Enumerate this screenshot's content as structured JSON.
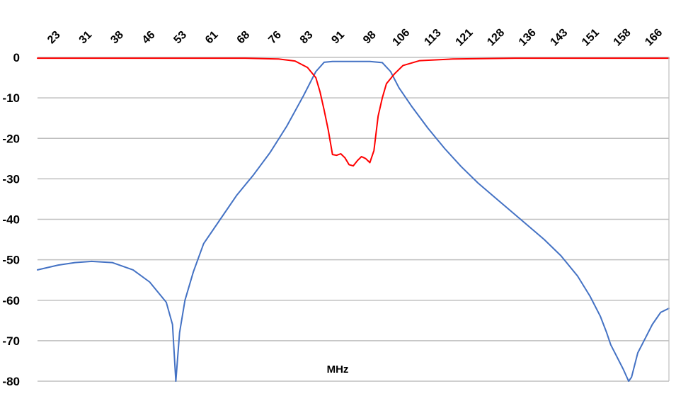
{
  "chart_data": {
    "type": "line",
    "title": "",
    "xlabel": "MHz",
    "ylabel": "",
    "xlim": [
      20,
      172
    ],
    "ylim": [
      -80,
      0
    ],
    "x_tick_labels": [
      "23",
      "31",
      "38",
      "46",
      "53",
      "61",
      "68",
      "76",
      "83",
      "91",
      "98",
      "106",
      "113",
      "121",
      "128",
      "136",
      "143",
      "151",
      "158",
      "166"
    ],
    "y_tick_labels": [
      "0",
      "-10",
      "-20",
      "-30",
      "-40",
      "-50",
      "-60",
      "-70",
      "-80"
    ],
    "grid": true,
    "colors": {
      "series_1": "#4472c4",
      "series_2": "#ff0000",
      "grid": "#bfbfbf"
    },
    "series": [
      {
        "color": "#4472c4",
        "points": [
          [
            20,
            -52.5
          ],
          [
            25,
            -51.3
          ],
          [
            29,
            -50.7
          ],
          [
            33,
            -50.4
          ],
          [
            38,
            -50.7
          ],
          [
            43,
            -52.5
          ],
          [
            47,
            -55.5
          ],
          [
            51,
            -60.5
          ],
          [
            52.5,
            -66
          ],
          [
            53.3,
            -80
          ],
          [
            54.2,
            -68
          ],
          [
            55.5,
            -60
          ],
          [
            57.5,
            -53
          ],
          [
            60,
            -46
          ],
          [
            64,
            -40
          ],
          [
            68,
            -34
          ],
          [
            72,
            -29
          ],
          [
            76,
            -23.5
          ],
          [
            80,
            -17
          ],
          [
            84,
            -9.5
          ],
          [
            87,
            -3.5
          ],
          [
            89,
            -1.2
          ],
          [
            91,
            -1
          ],
          [
            100,
            -1
          ],
          [
            103,
            -1.3
          ],
          [
            105,
            -3.5
          ],
          [
            107,
            -7.5
          ],
          [
            110,
            -12
          ],
          [
            114,
            -17.5
          ],
          [
            118,
            -22.5
          ],
          [
            122,
            -27
          ],
          [
            126,
            -31
          ],
          [
            130,
            -34.5
          ],
          [
            134,
            -38
          ],
          [
            138,
            -41.5
          ],
          [
            142,
            -45
          ],
          [
            146,
            -49
          ],
          [
            150,
            -54
          ],
          [
            153,
            -59
          ],
          [
            155.5,
            -64
          ],
          [
            157,
            -68
          ],
          [
            158,
            -71
          ],
          [
            159.5,
            -74
          ],
          [
            161,
            -77
          ],
          [
            162.3,
            -80
          ],
          [
            163,
            -79
          ],
          [
            164.5,
            -73
          ],
          [
            166,
            -70
          ],
          [
            168,
            -66
          ],
          [
            170,
            -63
          ],
          [
            172,
            -62
          ]
        ]
      },
      {
        "color": "#ff0000",
        "points": [
          [
            20,
            -0.2
          ],
          [
            70,
            -0.2
          ],
          [
            78,
            -0.4
          ],
          [
            82,
            -0.9
          ],
          [
            85,
            -2.5
          ],
          [
            87,
            -5
          ],
          [
            88,
            -8.5
          ],
          [
            89,
            -13
          ],
          [
            90,
            -18
          ],
          [
            91,
            -24
          ],
          [
            92,
            -24.2
          ],
          [
            93,
            -23.8
          ],
          [
            94,
            -24.8
          ],
          [
            95,
            -26.5
          ],
          [
            96,
            -26.8
          ],
          [
            97,
            -25.5
          ],
          [
            98,
            -24.5
          ],
          [
            99,
            -25
          ],
          [
            100,
            -26
          ],
          [
            101,
            -23
          ],
          [
            102,
            -14.5
          ],
          [
            103,
            -10
          ],
          [
            104,
            -6.5
          ],
          [
            106,
            -4
          ],
          [
            108,
            -2
          ],
          [
            112,
            -0.8
          ],
          [
            120,
            -0.4
          ],
          [
            135,
            -0.2
          ],
          [
            172,
            -0.2
          ]
        ]
      }
    ]
  }
}
